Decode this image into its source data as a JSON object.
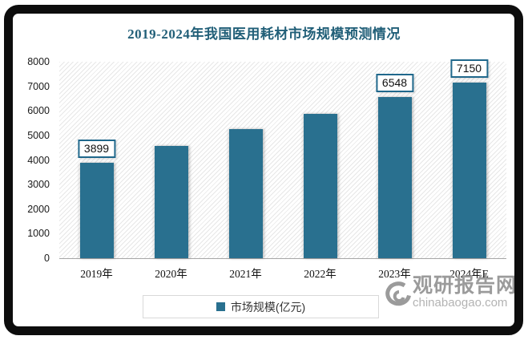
{
  "title": "2019-2024年我国医用耗材市场规模预测情况",
  "chart_data": {
    "type": "bar",
    "categories": [
      "2019年",
      "2020年",
      "2021年",
      "2022年",
      "2023年",
      "2024年E"
    ],
    "values": [
      3899,
      4580,
      5270,
      5890,
      6548,
      7150
    ],
    "data_labels": [
      "3899",
      null,
      null,
      null,
      "6548",
      "7150"
    ],
    "ylim": [
      0,
      8000
    ],
    "ytick_step": 1000,
    "yticks": [
      "8000",
      "7000",
      "6000",
      "5000",
      "4000",
      "3000",
      "2000",
      "1000",
      "0"
    ],
    "grid": false,
    "plot_background": "diagonal-hatch",
    "bar_color": "#29708F",
    "legend": {
      "label": "市场规模(亿元)",
      "position": "bottom",
      "marker_color": "#29708F"
    }
  },
  "watermark": {
    "logo": "swirl-logo",
    "site_name": "观研报告网",
    "site_url": "chinabaogao.com"
  },
  "colors": {
    "title": "#215F78",
    "bar": "#29708F",
    "label_box_border": "#20688C",
    "frame": "#0d0d0d",
    "axis_line": "#a6a6a6",
    "watermark_gray": "#9b9b9b"
  }
}
